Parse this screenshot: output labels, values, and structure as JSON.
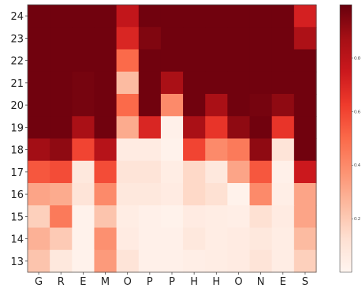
{
  "chart_data": {
    "type": "heatmap",
    "title": "",
    "xlabel": "",
    "ylabel": "",
    "x_categories": [
      "G",
      "R",
      "E",
      "M",
      "O",
      "P",
      "P",
      "H",
      "H",
      "O",
      "N",
      "E",
      "S"
    ],
    "y_categories": [
      "24",
      "23",
      "22",
      "21",
      "20",
      "19",
      "18",
      "17",
      "16",
      "15",
      "14",
      "13"
    ],
    "values": [
      [
        0.98,
        0.98,
        0.98,
        0.98,
        0.78,
        0.98,
        0.98,
        0.98,
        0.98,
        0.98,
        0.98,
        0.98,
        0.72
      ],
      [
        0.98,
        0.98,
        0.98,
        0.98,
        0.7,
        0.95,
        0.98,
        0.98,
        0.98,
        0.98,
        0.98,
        0.98,
        0.85
      ],
      [
        0.98,
        0.98,
        0.98,
        0.98,
        0.5,
        0.98,
        0.98,
        0.98,
        0.98,
        0.98,
        0.98,
        0.98,
        0.98
      ],
      [
        0.98,
        0.98,
        0.97,
        0.98,
        0.25,
        0.98,
        0.86,
        0.98,
        0.98,
        0.98,
        0.98,
        0.98,
        0.98
      ],
      [
        0.98,
        0.98,
        0.97,
        0.98,
        0.5,
        0.98,
        0.4,
        0.98,
        0.86,
        0.98,
        0.97,
        0.92,
        0.98
      ],
      [
        0.98,
        0.98,
        0.86,
        0.98,
        0.3,
        0.7,
        0.03,
        0.86,
        0.65,
        0.92,
        0.98,
        0.65,
        0.98
      ],
      [
        0.88,
        0.92,
        0.6,
        0.82,
        0.06,
        0.06,
        0.02,
        0.6,
        0.4,
        0.45,
        0.92,
        0.1,
        0.98
      ],
      [
        0.55,
        0.58,
        0.08,
        0.58,
        0.1,
        0.1,
        0.05,
        0.15,
        0.08,
        0.32,
        0.55,
        0.03,
        0.75
      ],
      [
        0.32,
        0.3,
        0.1,
        0.4,
        0.08,
        0.08,
        0.06,
        0.15,
        0.12,
        0.02,
        0.4,
        0.04,
        0.32
      ],
      [
        0.18,
        0.45,
        0.02,
        0.22,
        0.05,
        0.03,
        0.02,
        0.06,
        0.05,
        0.04,
        0.12,
        0.06,
        0.32
      ],
      [
        0.28,
        0.2,
        0.02,
        0.38,
        0.06,
        0.03,
        0.03,
        0.08,
        0.05,
        0.06,
        0.08,
        0.05,
        0.25
      ],
      [
        0.22,
        0.08,
        0.02,
        0.35,
        0.1,
        0.03,
        0.03,
        0.04,
        0.05,
        0.06,
        0.1,
        0.05,
        0.18
      ]
    ],
    "vmin": 0.0,
    "vmax": 1.0,
    "colormap": "Reds",
    "colorbar_ticks": [
      "0.2",
      "0.4",
      "0.6",
      "0.8"
    ],
    "colorbar_tick_values": [
      0.2,
      0.4,
      0.6,
      0.8
    ],
    "grid": false
  }
}
